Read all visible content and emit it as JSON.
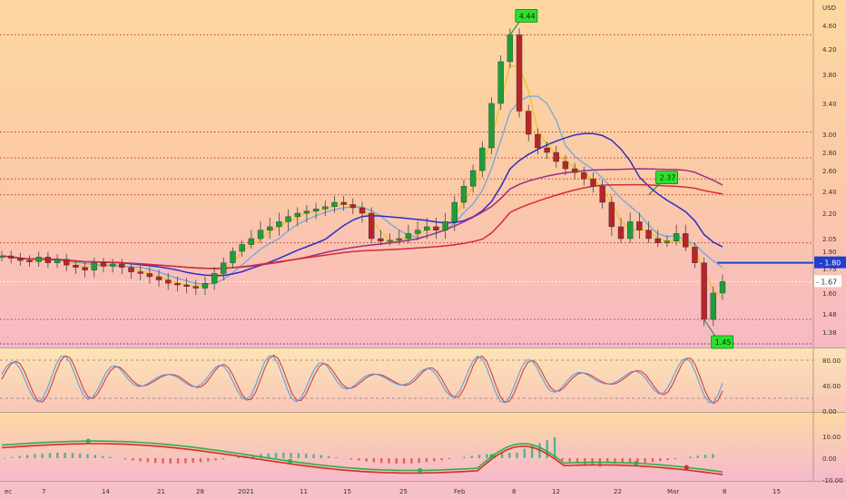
{
  "currency": "USD",
  "chart_data": [
    {
      "type": "candlestick",
      "panel": "price",
      "y_ticks": [
        "4.60",
        "4.20",
        "3.80",
        "3.40",
        "3.00",
        "2.80",
        "2.60",
        "2.40",
        "2.20",
        "2.05",
        "1.90",
        "1.75",
        "1.60",
        "1.48",
        "1.38"
      ],
      "current_price_label": "1.80",
      "secondary_price_label": "1.67",
      "annotations": [
        {
          "text": "4.44",
          "value": 4.44
        },
        {
          "text": "2.37",
          "value": 2.37
        },
        {
          "text": "1.45",
          "value": 1.45
        }
      ],
      "horizontal_levels": [
        4.44,
        3.03,
        2.74,
        2.52,
        2.37,
        2.0,
        1.45
      ],
      "candles_close_path": [
        1.86,
        1.84,
        1.82,
        1.81,
        1.85,
        1.8,
        1.83,
        1.78,
        1.76,
        1.74,
        1.8,
        1.77,
        1.79,
        1.76,
        1.73,
        1.72,
        1.7,
        1.68,
        1.66,
        1.65,
        1.64,
        1.63,
        1.66,
        1.72,
        1.8,
        1.9,
        1.98,
        2.05,
        2.1,
        2.12,
        2.15,
        2.18,
        2.2,
        2.22,
        2.24,
        2.26,
        2.3,
        2.28,
        2.25,
        2.2,
        2.05,
        2.02,
        2.03,
        2.05,
        2.08,
        2.1,
        2.12,
        2.1,
        2.15,
        2.3,
        2.45,
        2.6,
        2.85,
        3.4,
        4.0,
        4.44,
        3.3,
        3.0,
        2.85,
        2.8,
        2.7,
        2.62,
        2.58,
        2.52,
        2.45,
        2.3,
        2.12,
        2.05,
        2.15,
        2.1,
        2.05,
        2.0,
        2.02,
        2.08,
        1.95,
        1.8,
        1.45,
        1.6,
        1.67
      ]
    },
    {
      "type": "line",
      "panel": "oscillator",
      "y_ticks": [
        "80.00",
        "40.00",
        "0.00"
      ],
      "levels": [
        80,
        20
      ]
    },
    {
      "type": "histogram",
      "panel": "macd",
      "y_ticks": [
        "10.00",
        "0.00",
        "-10.00"
      ]
    }
  ],
  "x_labels": [
    "ec",
    "7",
    "14",
    "21",
    "28",
    "2021",
    "11",
    "15",
    "25",
    "Feb",
    "8",
    "12",
    "22",
    "Mar",
    "8",
    "15"
  ]
}
